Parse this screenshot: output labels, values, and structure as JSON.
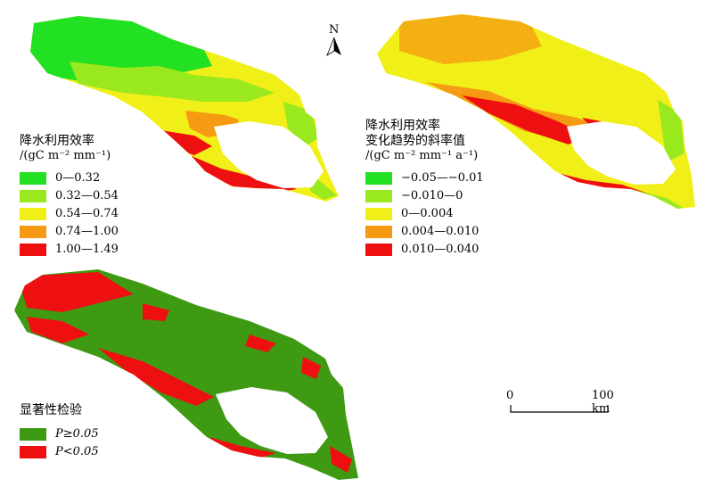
{
  "north_label": "N",
  "legend_wue": {
    "title": "降水利用效率",
    "unit": "/(gC m⁻² mm⁻¹)",
    "classes": [
      {
        "label": "0—0.32",
        "color": "#22e022"
      },
      {
        "label": "0.32—0.54",
        "color": "#9ae81e"
      },
      {
        "label": "0.54—0.74",
        "color": "#f0f018"
      },
      {
        "label": "0.74—1.00",
        "color": "#f59a12"
      },
      {
        "label": "1.00—1.49",
        "color": "#ee1010"
      }
    ]
  },
  "legend_trend": {
    "title": "降水利用效率",
    "title2": "变化趋势的斜率值",
    "unit": "/(gC m⁻² mm⁻¹  a⁻¹)",
    "classes": [
      {
        "label": "−0.05—−0.01",
        "color": "#22e022"
      },
      {
        "label": "−0.010—0",
        "color": "#9ae81e"
      },
      {
        "label": "0—0.004",
        "color": "#f0f018"
      },
      {
        "label": "0.004—0.010",
        "color": "#f59a12"
      },
      {
        "label": "0.010—0.040",
        "color": "#ee1010"
      }
    ]
  },
  "legend_sig": {
    "title": "显著性检验",
    "classes": [
      {
        "label": "P≥0.05",
        "color": "#3e9a12"
      },
      {
        "label": "P<0.05",
        "color": "#ee1010"
      }
    ]
  },
  "scale_bar": {
    "start_label": "0",
    "end_label": "100 km"
  }
}
